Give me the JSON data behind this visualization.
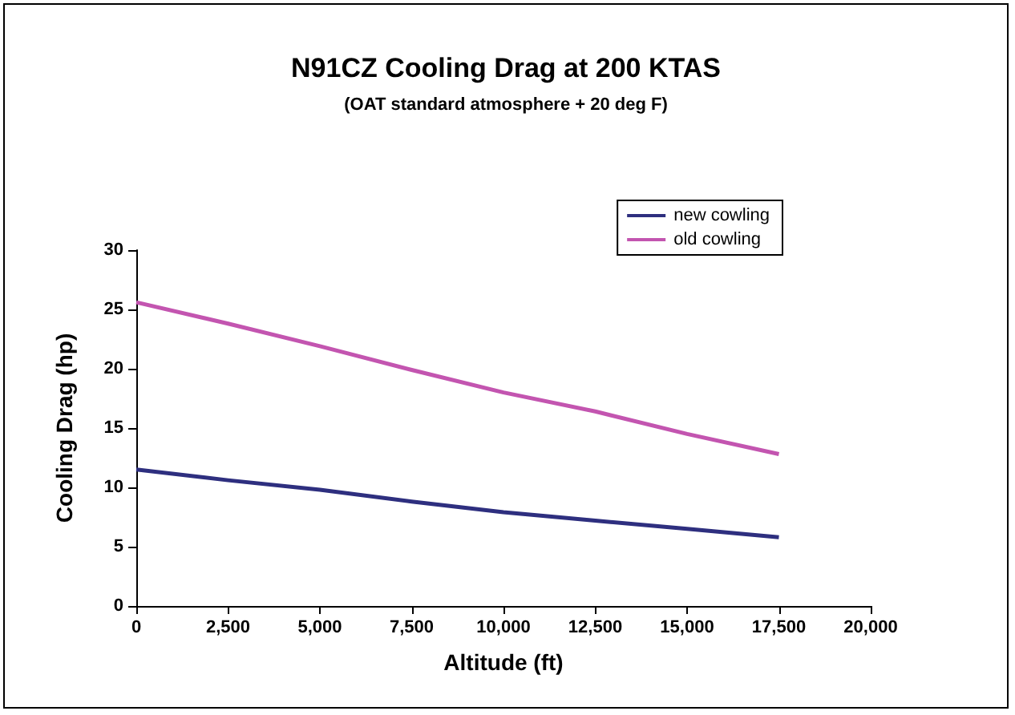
{
  "chart_data": {
    "type": "line",
    "title": "N91CZ Cooling Drag at 200 KTAS",
    "subtitle": "(OAT standard atmosphere + 20 deg F)",
    "xlabel": "Altitude (ft)",
    "ylabel": "Cooling Drag (hp)",
    "x": [
      0,
      2500,
      5000,
      7500,
      10000,
      12500,
      15000,
      17500
    ],
    "series": [
      {
        "name": "new cowling",
        "color": "#2e2f7f",
        "values": [
          11.5,
          10.6,
          9.8,
          8.8,
          7.9,
          7.2,
          6.5,
          5.8
        ]
      },
      {
        "name": "old cowling",
        "color": "#c355b0",
        "values": [
          25.6,
          23.8,
          21.9,
          19.9,
          18.0,
          16.4,
          14.5,
          12.8
        ]
      }
    ],
    "xlim": [
      0,
      20000
    ],
    "xticks": [
      {
        "value": 0,
        "label": "0"
      },
      {
        "value": 2500,
        "label": "2,500"
      },
      {
        "value": 5000,
        "label": "5,000"
      },
      {
        "value": 7500,
        "label": "7,500"
      },
      {
        "value": 10000,
        "label": "10,000"
      },
      {
        "value": 12500,
        "label": "12,500"
      },
      {
        "value": 15000,
        "label": "15,000"
      },
      {
        "value": 17500,
        "label": "17,500"
      },
      {
        "value": 20000,
        "label": "20,000"
      }
    ],
    "ylim": [
      0,
      30
    ],
    "yticks": [
      0,
      5,
      10,
      15,
      20,
      25,
      30
    ],
    "grid": false,
    "legend": "top right",
    "marker": "none",
    "line_style": "solid"
  }
}
